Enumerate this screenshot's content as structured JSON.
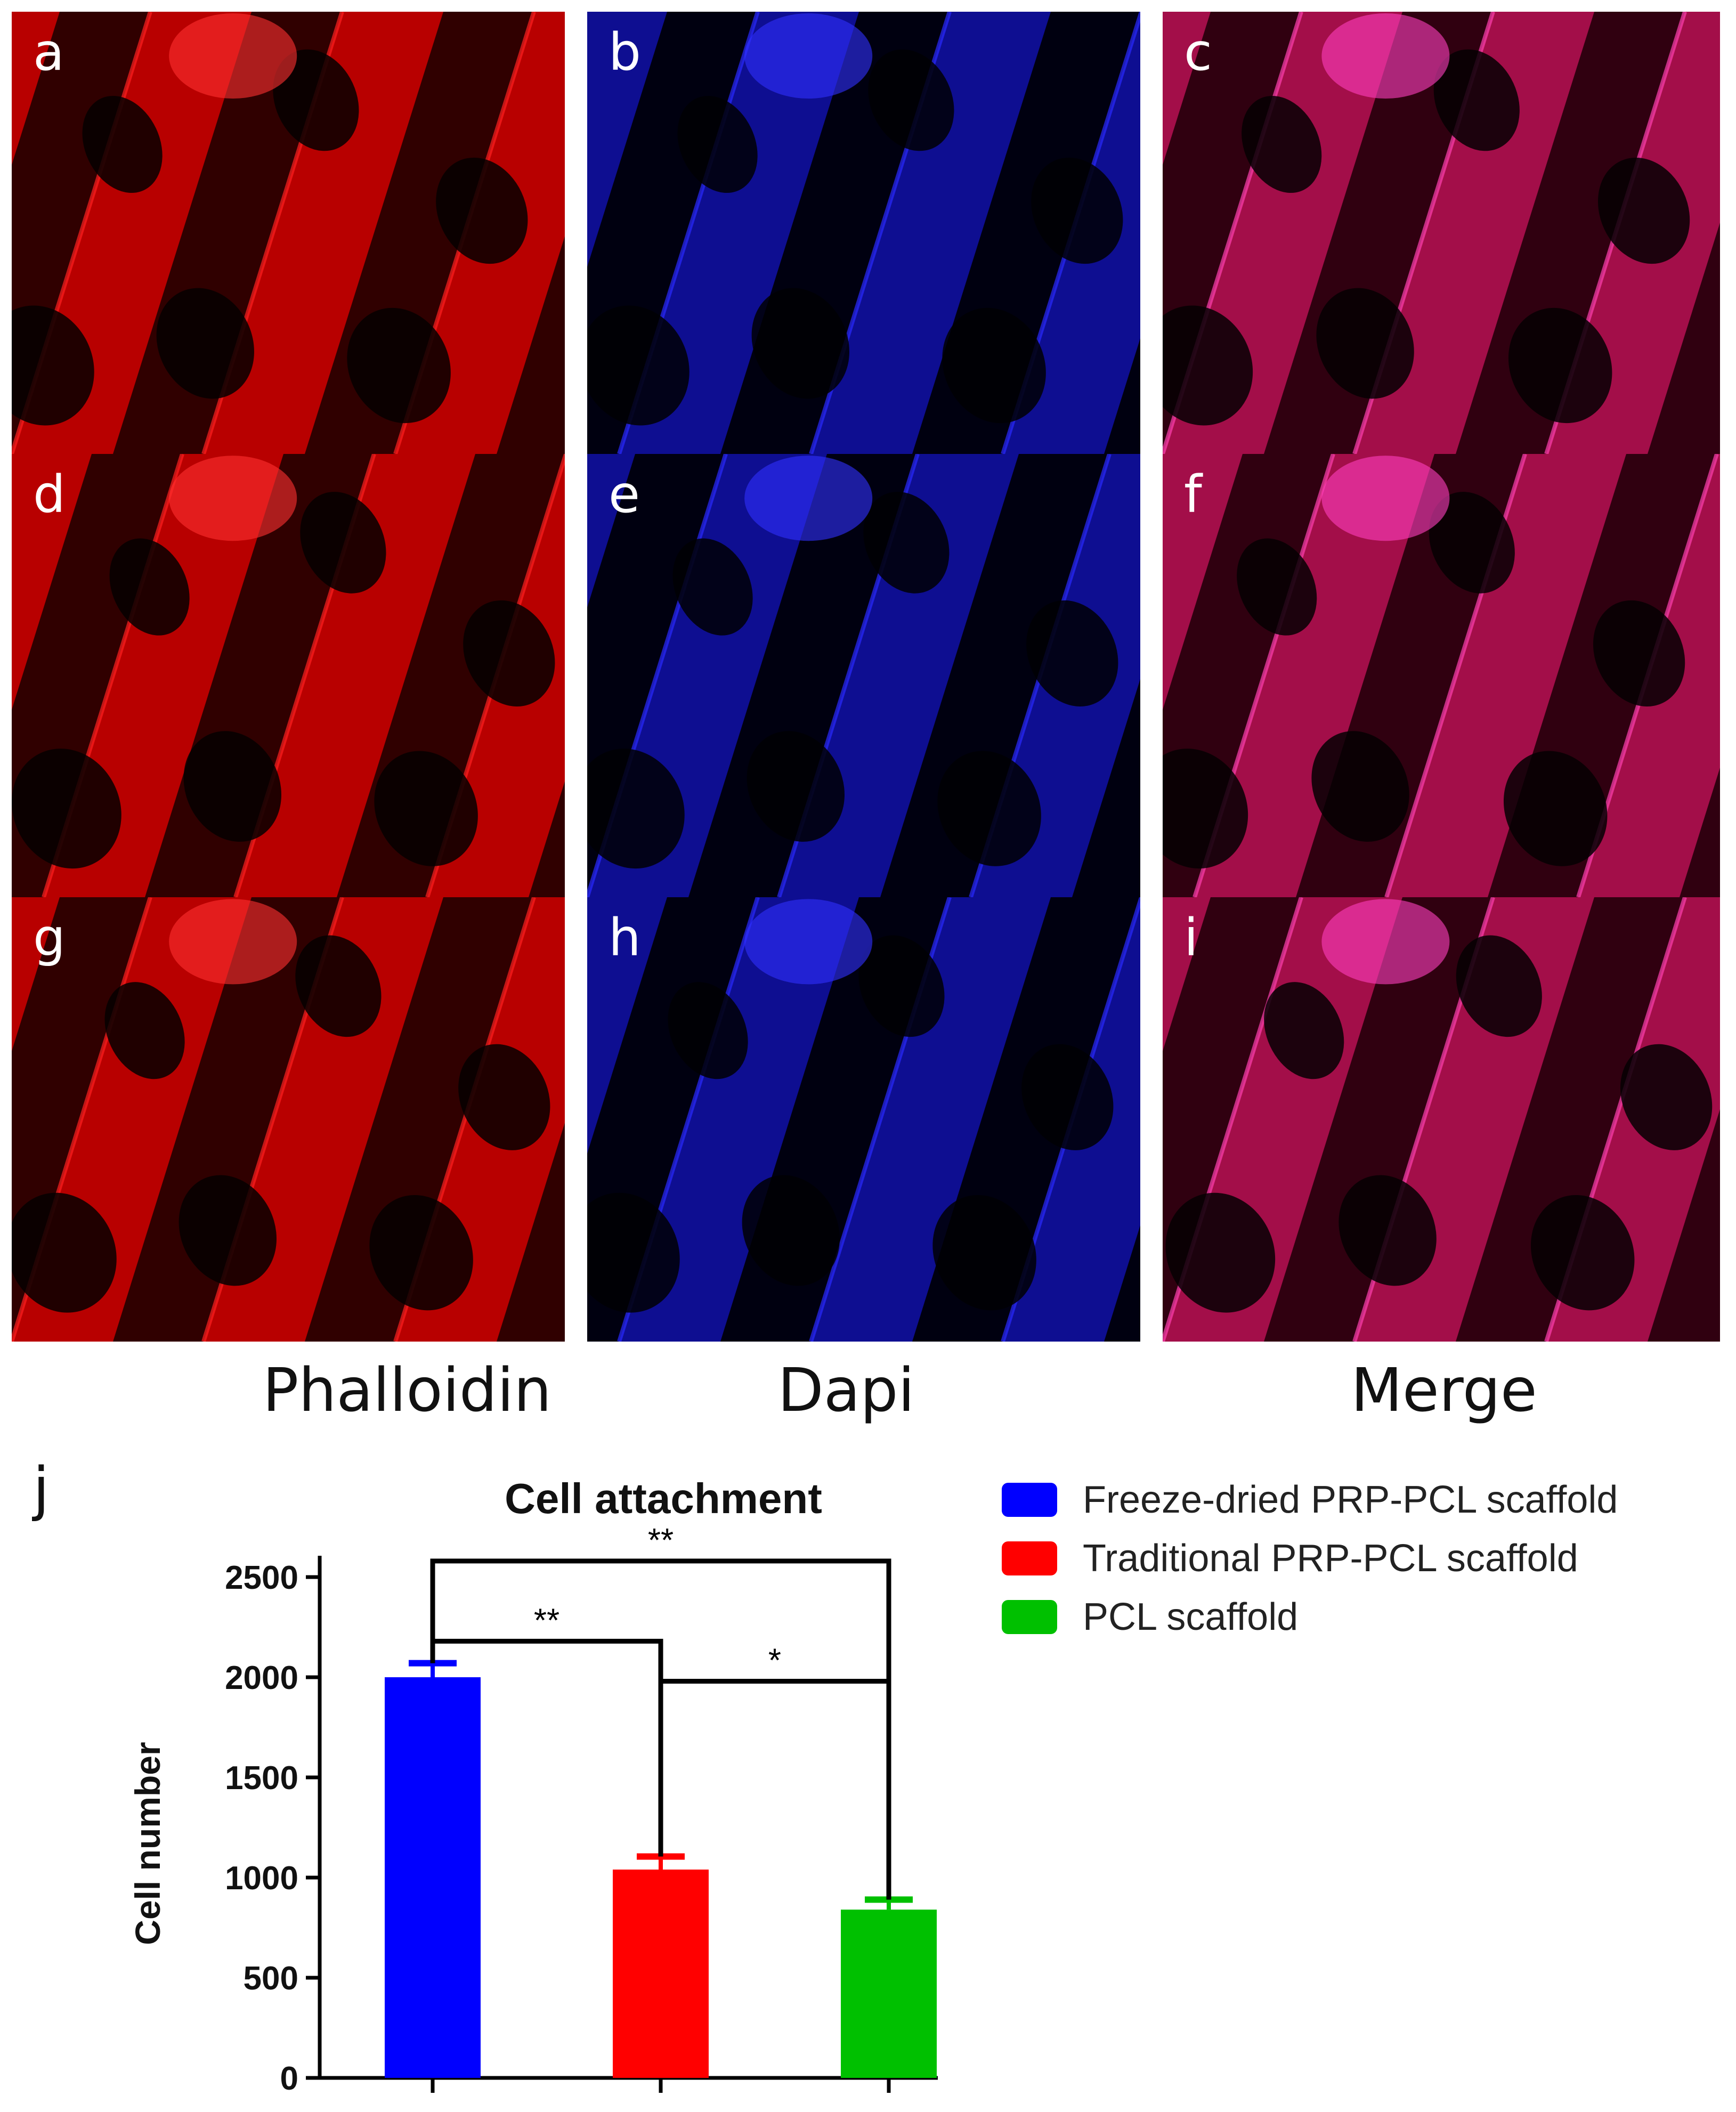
{
  "panels": [
    {
      "letter": "a",
      "channel": "red"
    },
    {
      "letter": "b",
      "channel": "blue"
    },
    {
      "letter": "c",
      "channel": "merge"
    },
    {
      "letter": "d",
      "channel": "red"
    },
    {
      "letter": "e",
      "channel": "blue"
    },
    {
      "letter": "f",
      "channel": "merge"
    },
    {
      "letter": "g",
      "channel": "red"
    },
    {
      "letter": "h",
      "channel": "blue"
    },
    {
      "letter": "i",
      "channel": "merge"
    }
  ],
  "column_titles": [
    "Phalloidin",
    "Dapi",
    "Merge"
  ],
  "chart_letter": "j",
  "colors": {
    "red_stain": "#e00000",
    "blue_stain": "#2020ff",
    "merge": "#d02080"
  },
  "chart_data": {
    "type": "bar",
    "title": "Cell attachment",
    "xlabel": "",
    "ylabel": "Cell number",
    "ylim": [
      0,
      2500
    ],
    "yticks": [
      0,
      500,
      1000,
      1500,
      2000,
      2500
    ],
    "categories": [
      "Freeze-dried PRP-PCL scaffold",
      "Traditional PRP-PCL scaffold",
      "PCL scaffold"
    ],
    "values": [
      2000,
      1040,
      840
    ],
    "errors": [
      70,
      65,
      50
    ],
    "colors": [
      "#0000ff",
      "#ff0000",
      "#00c000"
    ],
    "legend_position": "right",
    "significance": [
      {
        "from": 0,
        "to": 2,
        "label": "**",
        "level": 2580
      },
      {
        "from": 0,
        "to": 1,
        "label": "**",
        "level": 2180
      },
      {
        "from": 1,
        "to": 2,
        "label": "*",
        "level": 1980
      }
    ]
  }
}
